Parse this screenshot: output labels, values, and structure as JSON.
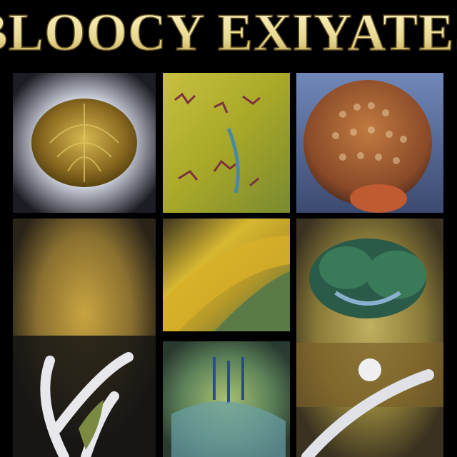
{
  "title": "BLOOCY EXIYATES"
}
